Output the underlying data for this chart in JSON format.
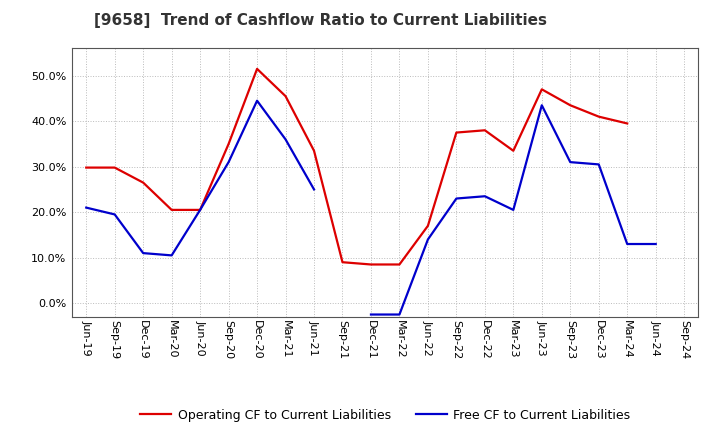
{
  "title": "[9658]  Trend of Cashflow Ratio to Current Liabilities",
  "operating_cf": {
    "label": "Operating CF to Current Liabilities",
    "color": "#dd0000",
    "x_labels": [
      "Jun-19",
      "Sep-19",
      "Dec-19",
      "Mar-20",
      "Jun-20",
      "Sep-20",
      "Dec-20",
      "Mar-21",
      "Jun-21",
      "Sep-21",
      "Dec-21",
      "Mar-22",
      "Jun-22",
      "Sep-22",
      "Dec-22",
      "Mar-23",
      "Jun-23",
      "Sep-23",
      "Dec-23",
      "Mar-24",
      "Jun-24",
      "Sep-24"
    ],
    "values": [
      0.298,
      0.298,
      0.265,
      0.205,
      0.205,
      0.35,
      0.515,
      0.455,
      0.335,
      0.09,
      0.085,
      0.085,
      0.17,
      0.375,
      0.38,
      0.335,
      0.47,
      0.435,
      0.41,
      0.395,
      null,
      null
    ]
  },
  "free_cf": {
    "label": "Free CF to Current Liabilities",
    "color": "#0000cc",
    "values": [
      0.21,
      0.195,
      0.11,
      0.105,
      0.205,
      0.31,
      0.445,
      0.36,
      0.25,
      null,
      -0.025,
      -0.025,
      0.14,
      0.23,
      0.235,
      0.205,
      0.435,
      0.31,
      0.305,
      0.13,
      0.13,
      null
    ]
  },
  "ylim": [
    -0.03,
    0.56
  ],
  "yticks": [
    0.0,
    0.1,
    0.2,
    0.3,
    0.4,
    0.5
  ],
  "background_color": "#ffffff",
  "plot_bg_color": "#ffffff",
  "grid_color": "#bbbbbb",
  "title_fontsize": 11,
  "legend_fontsize": 9,
  "tick_fontsize": 8
}
